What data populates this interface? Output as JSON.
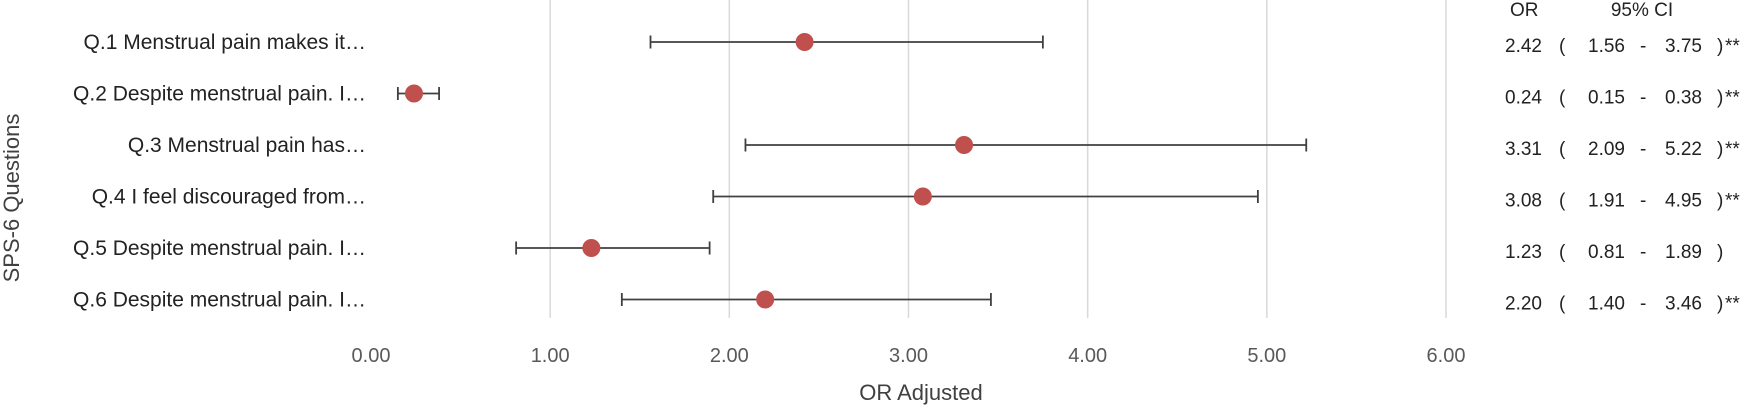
{
  "chart_data": {
    "type": "forest",
    "title": "",
    "xlabel": "OR Adjusted",
    "ylabel": "SPS-6 Questions",
    "xlim": [
      0,
      6
    ],
    "xticks": [
      "0.00",
      "1.00",
      "2.00",
      "3.00",
      "4.00",
      "5.00",
      "6.00"
    ],
    "xtick_values": [
      0,
      1,
      2,
      3,
      4,
      5,
      6
    ],
    "grid": "vertical",
    "marker_color": "#c0504d",
    "line_color": "#404040",
    "grid_color": "#d9d9d9",
    "table_headers": {
      "or": "OR",
      "ci": "95% CI"
    },
    "rows": [
      {
        "label": "Q.1 Menstrual pain makes it…",
        "or": 2.42,
        "lower": 1.56,
        "upper": 3.75,
        "or_text": "2.42",
        "lower_text": "1.56",
        "upper_text": "3.75",
        "sig": "**"
      },
      {
        "label": "Q.2 Despite menstrual pain. I…",
        "or": 0.24,
        "lower": 0.15,
        "upper": 0.38,
        "or_text": "0.24",
        "lower_text": "0.15",
        "upper_text": "0.38",
        "sig": "**"
      },
      {
        "label": "Q.3 Menstrual pain has…",
        "or": 3.31,
        "lower": 2.09,
        "upper": 5.22,
        "or_text": "3.31",
        "lower_text": "2.09",
        "upper_text": "5.22",
        "sig": "**"
      },
      {
        "label": "Q.4 I feel discouraged from…",
        "or": 3.08,
        "lower": 1.91,
        "upper": 4.95,
        "or_text": "3.08",
        "lower_text": "1.91",
        "upper_text": "4.95",
        "sig": "**"
      },
      {
        "label": "Q.5 Despite menstrual pain. I…",
        "or": 1.23,
        "lower": 0.81,
        "upper": 1.89,
        "or_text": "1.23",
        "lower_text": "0.81",
        "upper_text": "1.89",
        "sig": ""
      },
      {
        "label": "Q.6 Despite menstrual pain. I…",
        "or": 2.2,
        "lower": 1.4,
        "upper": 3.46,
        "or_text": "2.20",
        "lower_text": "1.40",
        "upper_text": "3.46",
        "sig": "**"
      }
    ]
  }
}
